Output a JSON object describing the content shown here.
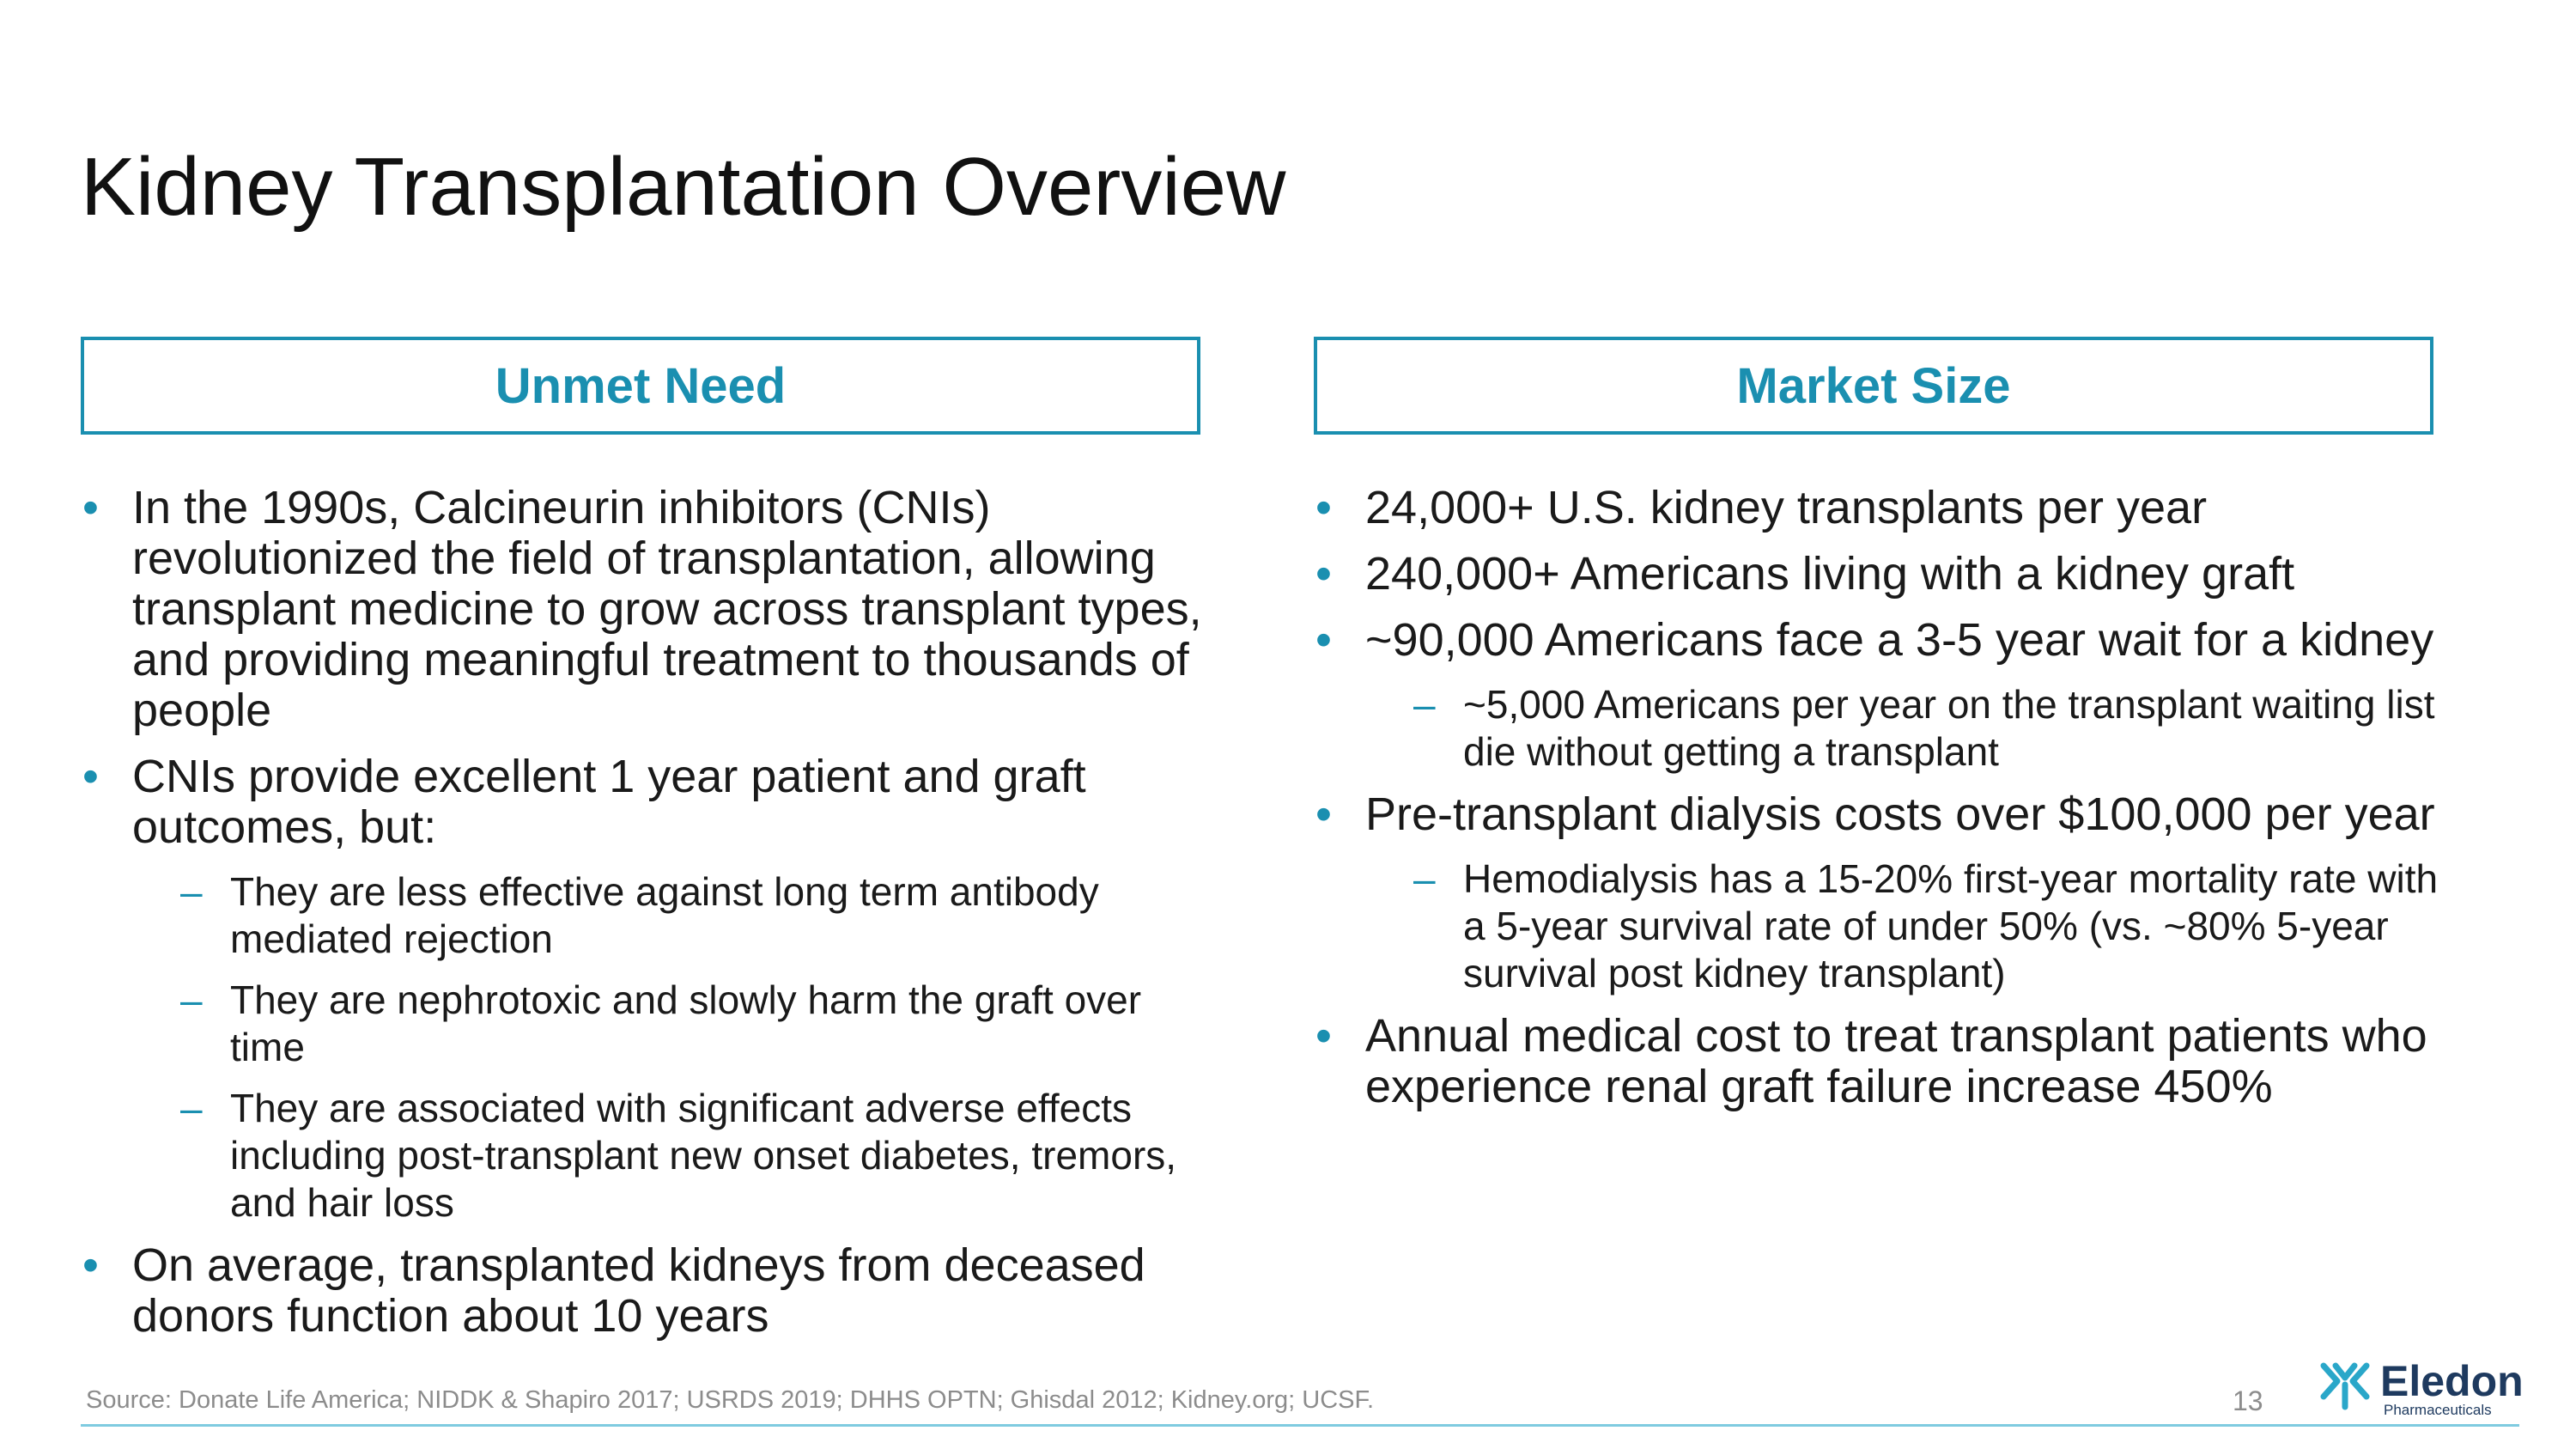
{
  "slide": {
    "title": "Kidney Transplantation Overview",
    "page_number": "13",
    "source": "Source: Donate Life America; NIDDK & Shapiro 2017; USRDS 2019; DHHS OPTN; Ghisdal 2012; Kidney.org; UCSF.",
    "accent_color": "#1a8fb0"
  },
  "bullets": {
    "primary": "•",
    "secondary": "–"
  },
  "left": {
    "header": "Unmet Need",
    "items": [
      {
        "text": "In the 1990s, Calcineurin inhibitors (CNIs) revolutionized the field of transplantation, allowing transplant medicine to grow across transplant types, and providing meaningful treatment to thousands of people"
      },
      {
        "text": "CNIs provide excellent 1 year patient and graft outcomes, but:"
      },
      {
        "text": "They are less effective against long term antibody mediated rejection"
      },
      {
        "text": "They are nephrotoxic and slowly harm the graft over time"
      },
      {
        "text": "They are associated with significant adverse effects including post-transplant new onset diabetes, tremors, and hair loss"
      },
      {
        "text": "On average, transplanted kidneys from deceased donors function about 10 years"
      }
    ]
  },
  "right": {
    "header": "Market Size",
    "items": [
      {
        "text": "24,000+ U.S. kidney transplants per year"
      },
      {
        "text": "240,000+ Americans living with a kidney graft"
      },
      {
        "text": "~90,000 Americans face a 3-5 year wait for a kidney"
      },
      {
        "text": "~5,000 Americans per year on the transplant waiting list die without getting a transplant"
      },
      {
        "text": "Pre-transplant dialysis costs over $100,000 per year"
      },
      {
        "text": "Hemodialysis has a 15-20% first-year mortality rate with a 5-year survival rate of under 50% (vs. ~80% 5-year survival post kidney transplant)"
      },
      {
        "text": "Annual medical cost to treat transplant patients who experience renal graft failure increase 450%"
      }
    ]
  },
  "logo": {
    "name": "Eledon",
    "subtitle": "Pharmaceuticals",
    "icon": "eledon-logo-icon"
  }
}
